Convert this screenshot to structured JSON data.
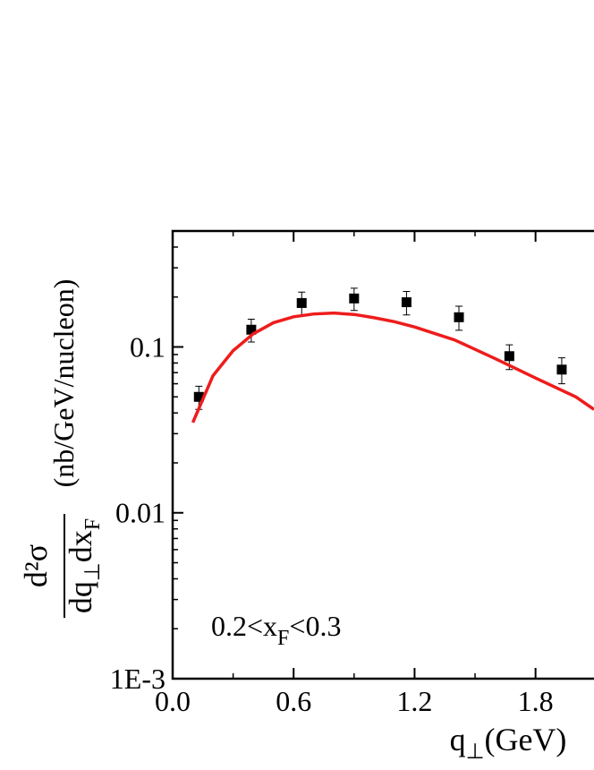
{
  "chart_data": {
    "type": "scatter",
    "x_label": [
      "q",
      "⊥",
      "(GeV)"
    ],
    "y_label": {
      "numerator": "d²σ",
      "denominator": [
        "dq",
        "⊥",
        "dx",
        "F"
      ],
      "units": "(nb/GeV/nucleon)"
    },
    "annotation": [
      "0.2<x",
      "F",
      "<0.3"
    ],
    "log_y": true,
    "xlim": [
      0,
      2.09
    ],
    "ylim": [
      0.001,
      0.5
    ],
    "xticks": [
      {
        "value": 0,
        "label": "0.0"
      },
      0.6,
      1.2,
      1.8
    ],
    "yticks": [
      {
        "value": 0.001,
        "label": "1E-3"
      },
      0.01,
      0.1
    ],
    "series": [
      {
        "kind": "points",
        "color": "#000000",
        "x": [
          0.13,
          0.39,
          0.64,
          0.9,
          1.16,
          1.42,
          1.67,
          1.93
        ],
        "values": [
          0.05,
          0.127,
          0.184,
          0.196,
          0.186,
          0.151,
          0.088,
          0.073
        ],
        "errors": [
          0.008,
          0.02,
          0.03,
          0.03,
          0.03,
          0.025,
          0.015,
          0.013
        ]
      },
      {
        "kind": "line",
        "color": "#ee1c1c",
        "x": [
          0.1,
          0.2,
          0.3,
          0.4,
          0.5,
          0.6,
          0.7,
          0.8,
          0.9,
          1.0,
          1.1,
          1.2,
          1.4,
          1.6,
          1.8,
          2.0,
          2.09
        ],
        "values": [
          0.035,
          0.067,
          0.095,
          0.12,
          0.14,
          0.152,
          0.158,
          0.16,
          0.157,
          0.15,
          0.142,
          0.132,
          0.11,
          0.085,
          0.065,
          0.05,
          0.042
        ]
      }
    ]
  }
}
